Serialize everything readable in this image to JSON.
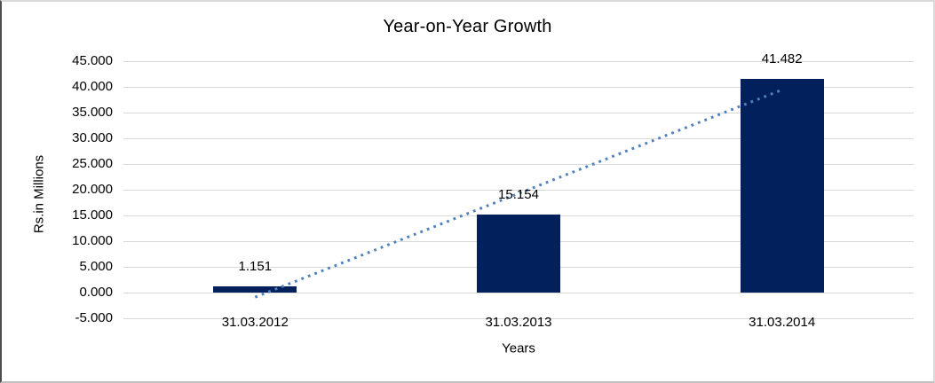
{
  "chart_data": {
    "type": "bar",
    "title": "Year-on-Year Growth",
    "xlabel": "Years",
    "ylabel": "Rs.in Millions",
    "categories": [
      "31.03.2012",
      "31.03.2013",
      "31.03.2014"
    ],
    "series": [
      {
        "values": [
          1.151,
          15.154,
          41.482
        ],
        "labels": [
          "1.151",
          "15.154",
          "41.482"
        ],
        "color": "#02215c"
      }
    ],
    "ylim": [
      -5,
      45
    ],
    "yticks": [
      {
        "value": -5,
        "label": "-5.000"
      },
      {
        "value": 0,
        "label": "0.000"
      },
      {
        "value": 5,
        "label": "5.000"
      },
      {
        "value": 10,
        "label": "10.000"
      },
      {
        "value": 15,
        "label": "15.000"
      },
      {
        "value": 20,
        "label": "20.000"
      },
      {
        "value": 25,
        "label": "25.000"
      },
      {
        "value": 30,
        "label": "30.000"
      },
      {
        "value": 35,
        "label": "35.000"
      },
      {
        "value": 40,
        "label": "40.000"
      },
      {
        "value": 45,
        "label": "45.000"
      }
    ],
    "grid": "horizontal",
    "gridline_color": "#d9d9d9",
    "legend": "none",
    "trendline": {
      "type": "linear",
      "style": "dotted",
      "color": "#4f81bd",
      "start_value": -0.9,
      "end_value": 39.43
    }
  }
}
